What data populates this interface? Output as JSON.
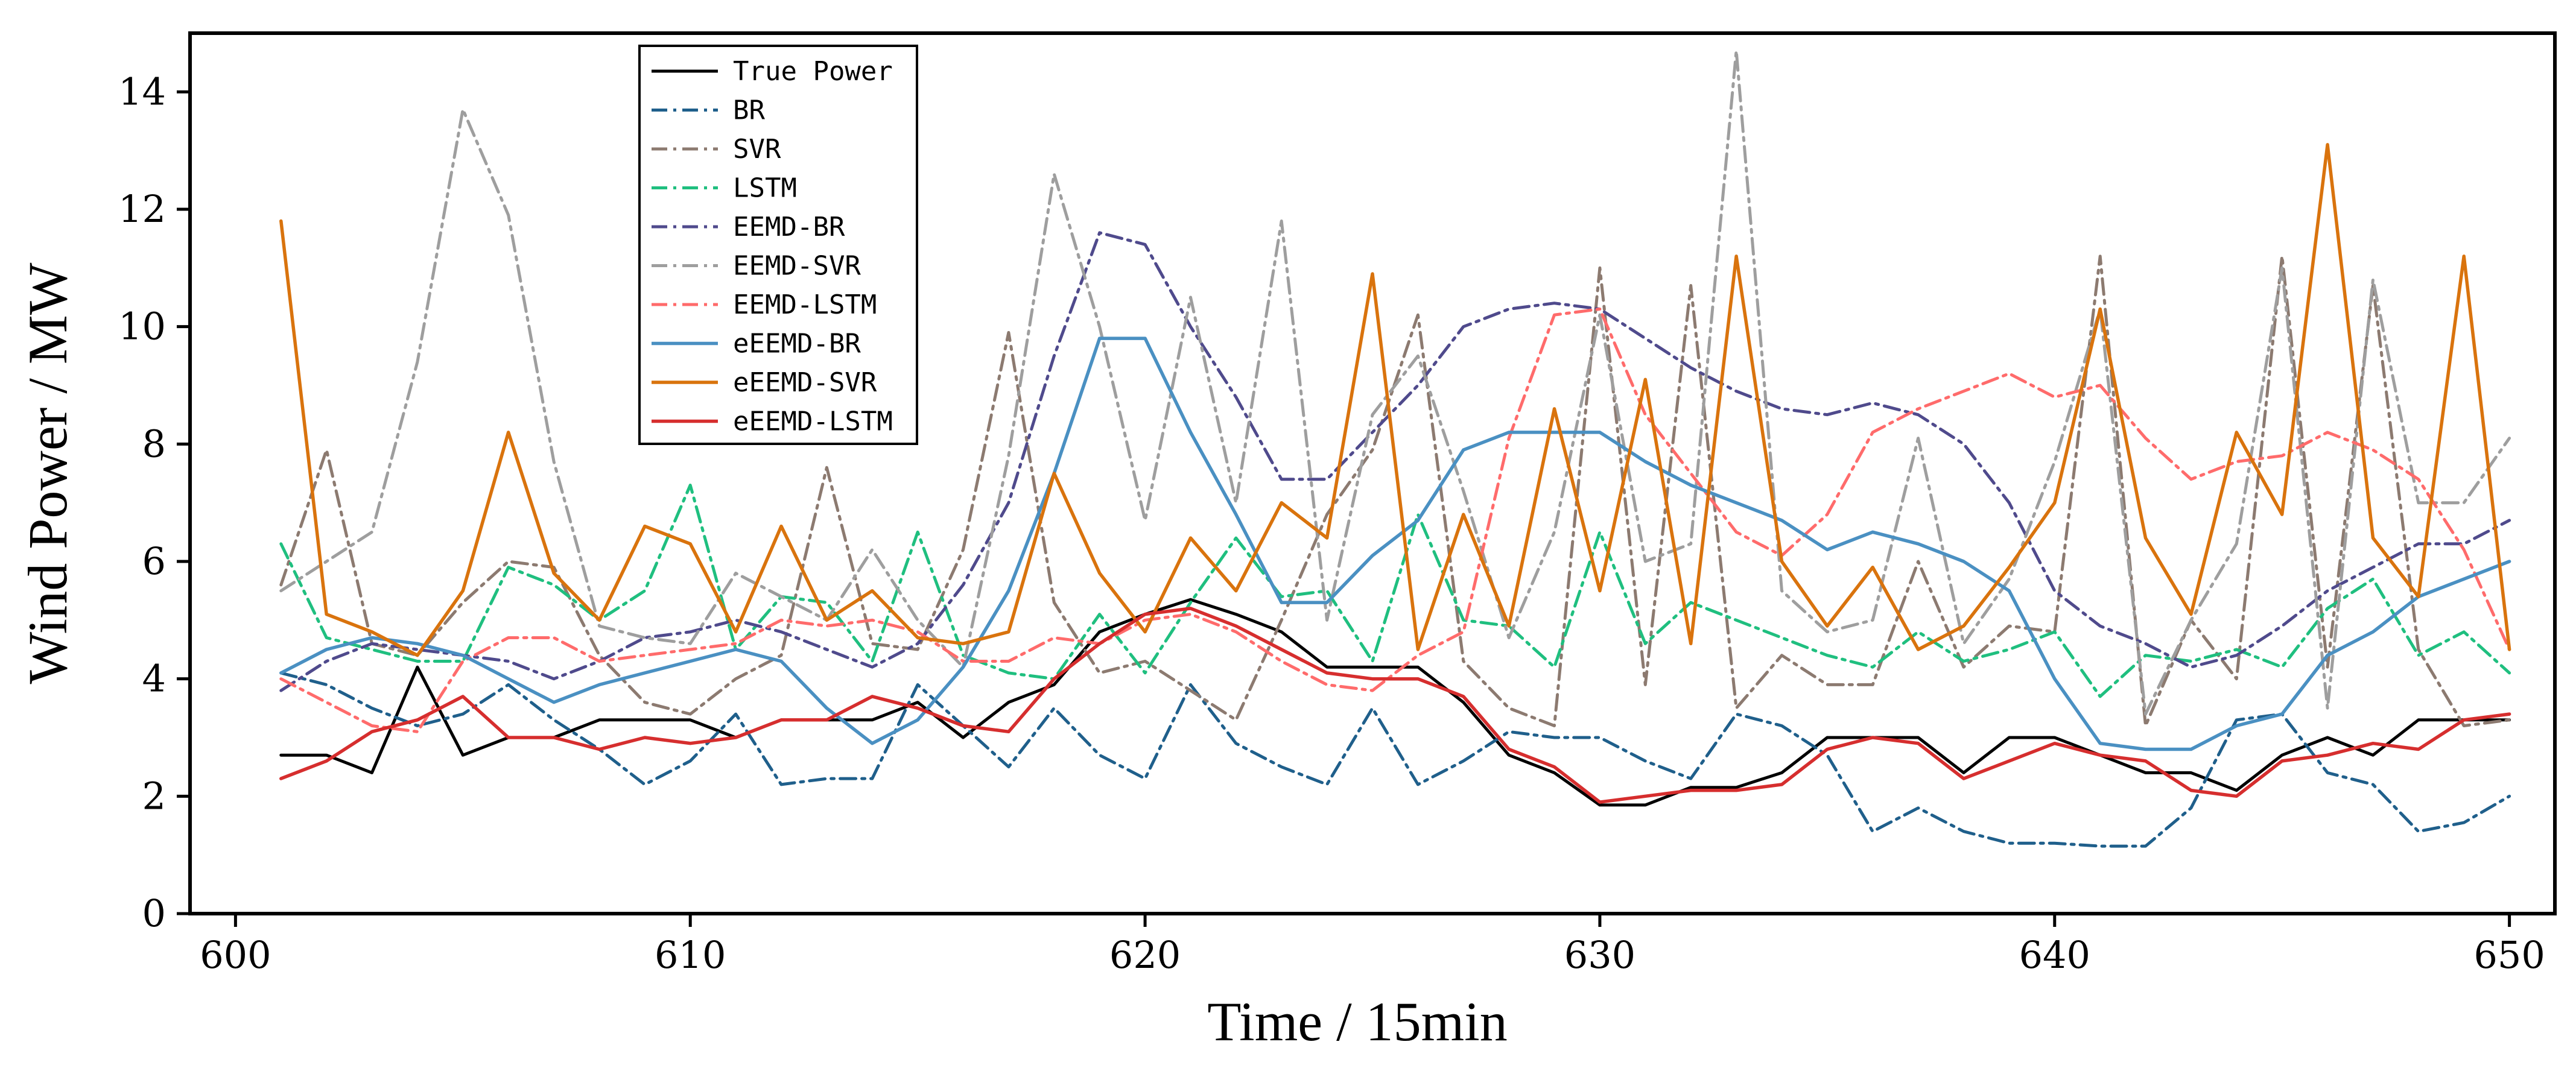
{
  "chart_data": {
    "type": "line",
    "title": "",
    "xlabel": "Time / 15min",
    "ylabel": "Wind Power / MW",
    "xlim": [
      599,
      651
    ],
    "ylim": [
      0,
      15
    ],
    "xticks": [
      600,
      610,
      620,
      630,
      640,
      650
    ],
    "yticks": [
      0,
      2,
      4,
      6,
      8,
      10,
      12,
      14
    ],
    "legend_position": "top-left",
    "x": [
      601,
      602,
      603,
      604,
      605,
      606,
      607,
      608,
      609,
      610,
      611,
      612,
      613,
      614,
      615,
      616,
      617,
      618,
      619,
      620,
      621,
      622,
      623,
      624,
      625,
      626,
      627,
      628,
      629,
      630,
      631,
      632,
      633,
      634,
      635,
      636,
      637,
      638,
      639,
      640,
      641,
      642,
      643,
      644,
      645,
      646,
      647,
      648,
      649,
      650
    ],
    "series": [
      {
        "name": "True Power",
        "color": "#000000",
        "dash": "solid",
        "width": 5,
        "values": [
          2.7,
          2.7,
          2.4,
          4.2,
          2.7,
          3.0,
          3.0,
          3.3,
          3.3,
          3.3,
          3.0,
          3.3,
          3.3,
          3.3,
          3.6,
          3.0,
          3.6,
          3.9,
          4.8,
          5.1,
          5.35,
          5.1,
          4.8,
          4.2,
          4.2,
          4.2,
          3.6,
          2.7,
          2.4,
          1.85,
          1.85,
          2.15,
          2.15,
          2.4,
          3.0,
          3.0,
          3.0,
          2.4,
          3.0,
          3.0,
          2.7,
          2.4,
          2.4,
          2.1,
          2.7,
          3.0,
          2.7,
          3.3,
          3.3,
          3.3
        ]
      },
      {
        "name": "BR",
        "color": "#1f5f8b",
        "dash": "dashdot",
        "width": 5,
        "values": [
          4.1,
          3.9,
          3.5,
          3.2,
          3.4,
          3.9,
          3.3,
          2.8,
          2.2,
          2.6,
          3.4,
          2.2,
          2.3,
          2.3,
          3.9,
          3.2,
          2.5,
          3.5,
          2.7,
          2.3,
          3.9,
          2.9,
          2.5,
          2.2,
          3.5,
          2.2,
          2.6,
          3.1,
          3.0,
          3.0,
          2.6,
          2.3,
          3.4,
          3.2,
          2.7,
          1.4,
          1.8,
          1.4,
          1.2,
          1.2,
          1.15,
          1.15,
          1.8,
          3.3,
          3.4,
          2.4,
          2.2,
          1.4,
          1.55,
          2.0
        ]
      },
      {
        "name": "SVR",
        "color": "#8c7a70",
        "dash": "dashdot",
        "width": 5,
        "values": [
          5.6,
          7.9,
          4.6,
          4.4,
          5.3,
          6.0,
          5.9,
          4.4,
          3.6,
          3.4,
          4.0,
          4.4,
          7.6,
          4.6,
          4.5,
          6.2,
          9.9,
          5.3,
          4.1,
          4.3,
          3.8,
          3.3,
          5.0,
          6.8,
          7.9,
          10.2,
          4.3,
          3.5,
          3.2,
          11.0,
          3.9,
          10.7,
          3.5,
          4.4,
          3.9,
          3.9,
          6.0,
          4.2,
          4.9,
          4.8,
          11.2,
          3.2,
          5.0,
          4.0,
          11.2,
          4.2,
          10.7,
          4.5,
          3.2,
          3.3
        ]
      },
      {
        "name": "LSTM",
        "color": "#1fbf7f",
        "dash": "dashdot",
        "width": 5,
        "values": [
          6.3,
          4.7,
          4.5,
          4.3,
          4.3,
          5.9,
          5.6,
          5.0,
          5.5,
          7.3,
          4.5,
          5.4,
          5.3,
          4.3,
          6.5,
          4.4,
          4.1,
          4.0,
          5.1,
          4.1,
          5.3,
          6.4,
          5.4,
          5.5,
          4.3,
          6.8,
          5.0,
          4.9,
          4.2,
          6.5,
          4.6,
          5.3,
          5.0,
          4.7,
          4.4,
          4.2,
          4.8,
          4.3,
          4.5,
          4.8,
          3.7,
          4.4,
          4.3,
          4.5,
          4.2,
          5.2,
          5.7,
          4.4,
          4.8,
          4.1
        ]
      },
      {
        "name": "EEMD-BR",
        "color": "#4f4a8c",
        "dash": "dashdot",
        "width": 5,
        "values": [
          3.8,
          4.3,
          4.6,
          4.5,
          4.4,
          4.3,
          4.0,
          4.3,
          4.7,
          4.8,
          5.0,
          4.8,
          4.5,
          4.2,
          4.6,
          5.6,
          7.0,
          9.5,
          11.6,
          11.4,
          10.0,
          8.8,
          7.4,
          7.4,
          8.2,
          9.0,
          10.0,
          10.3,
          10.4,
          10.3,
          9.8,
          9.3,
          8.9,
          8.6,
          8.5,
          8.7,
          8.5,
          8.0,
          7.0,
          5.5,
          4.9,
          4.6,
          4.2,
          4.4,
          4.9,
          5.5,
          5.9,
          6.3,
          6.3,
          6.7
        ]
      },
      {
        "name": "EEMD-SVR",
        "color": "#9e9e9e",
        "dash": "dashdot",
        "width": 5,
        "values": [
          5.5,
          6.0,
          6.5,
          9.4,
          13.7,
          11.9,
          7.7,
          4.9,
          4.7,
          4.6,
          5.8,
          5.4,
          5.0,
          6.2,
          5.0,
          4.2,
          7.8,
          12.6,
          10.0,
          6.7,
          10.5,
          7.0,
          11.8,
          5.0,
          8.5,
          9.5,
          7.2,
          4.7,
          6.5,
          10.2,
          6.0,
          6.3,
          14.7,
          5.5,
          4.8,
          5.0,
          8.1,
          4.6,
          5.7,
          7.7,
          10.3,
          3.4,
          5.0,
          6.3,
          11.0,
          3.5,
          10.8,
          7.0,
          7.0,
          8.1
        ]
      },
      {
        "name": "EEMD-LSTM",
        "color": "#ff6b6b",
        "dash": "dashdot",
        "width": 5,
        "values": [
          4.0,
          3.6,
          3.2,
          3.1,
          4.3,
          4.7,
          4.7,
          4.3,
          4.4,
          4.5,
          4.6,
          5.0,
          4.9,
          5.0,
          4.8,
          4.3,
          4.3,
          4.7,
          4.6,
          5.0,
          5.1,
          4.8,
          4.3,
          3.9,
          3.8,
          4.4,
          4.8,
          8.1,
          10.2,
          10.3,
          8.5,
          7.5,
          6.5,
          6.1,
          6.8,
          8.2,
          8.6,
          8.9,
          9.2,
          8.8,
          9.0,
          8.1,
          7.4,
          7.7,
          7.8,
          8.2,
          7.9,
          7.4,
          6.2,
          4.5
        ]
      },
      {
        "name": "eEEMD-BR",
        "color": "#4a90c2",
        "dash": "solid",
        "width": 5.5,
        "values": [
          4.1,
          4.5,
          4.7,
          4.6,
          4.4,
          4.0,
          3.6,
          3.9,
          4.1,
          4.3,
          4.5,
          4.3,
          3.5,
          2.9,
          3.3,
          4.2,
          5.5,
          7.5,
          9.8,
          9.8,
          8.2,
          6.8,
          5.3,
          5.3,
          6.1,
          6.7,
          7.9,
          8.2,
          8.2,
          8.2,
          7.7,
          7.3,
          7.0,
          6.7,
          6.2,
          6.5,
          6.3,
          6.0,
          5.5,
          4.0,
          2.9,
          2.8,
          2.8,
          3.2,
          3.4,
          4.4,
          4.8,
          5.4,
          5.7,
          6.0
        ]
      },
      {
        "name": "eEEMD-SVR",
        "color": "#d9730d",
        "dash": "solid",
        "width": 5.5,
        "values": [
          11.8,
          5.1,
          4.8,
          4.4,
          5.5,
          8.2,
          5.8,
          5.0,
          6.6,
          6.3,
          4.8,
          6.6,
          5.0,
          5.5,
          4.7,
          4.6,
          4.8,
          7.5,
          5.8,
          4.8,
          6.4,
          5.5,
          7.0,
          6.4,
          10.9,
          4.5,
          6.8,
          4.9,
          8.6,
          5.5,
          9.1,
          4.6,
          11.2,
          6.0,
          4.9,
          5.9,
          4.5,
          4.9,
          5.9,
          7.0,
          10.3,
          6.4,
          5.1,
          8.2,
          6.8,
          13.1,
          6.4,
          5.4,
          11.2,
          4.5
        ]
      },
      {
        "name": "eEEMD-LSTM",
        "color": "#d62e2e",
        "dash": "solid",
        "width": 5.5,
        "values": [
          2.3,
          2.6,
          3.1,
          3.3,
          3.7,
          3.0,
          3.0,
          2.8,
          3.0,
          2.9,
          3.0,
          3.3,
          3.3,
          3.7,
          3.5,
          3.2,
          3.1,
          4.0,
          4.6,
          5.1,
          5.2,
          4.9,
          4.5,
          4.1,
          4.0,
          4.0,
          3.7,
          2.8,
          2.5,
          1.9,
          2.0,
          2.1,
          2.1,
          2.2,
          2.8,
          3.0,
          2.9,
          2.3,
          2.6,
          2.9,
          2.7,
          2.6,
          2.1,
          2.0,
          2.6,
          2.7,
          2.9,
          2.8,
          3.3,
          3.4
        ]
      }
    ]
  }
}
